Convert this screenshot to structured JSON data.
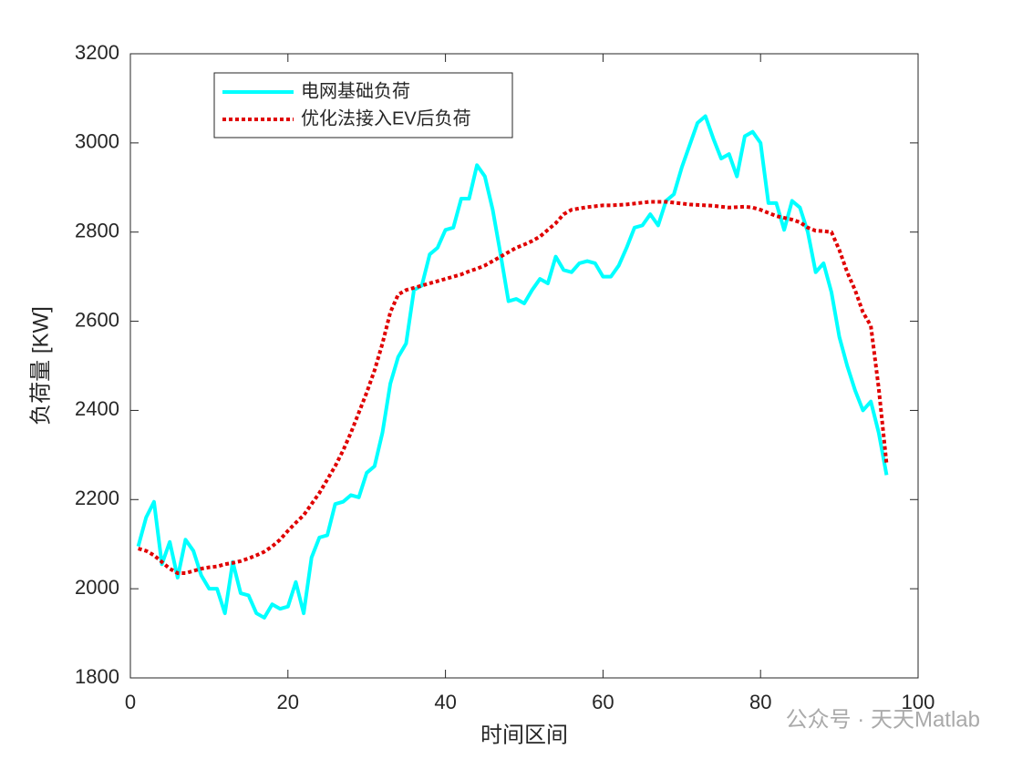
{
  "chart_data": {
    "type": "line",
    "xlabel": "时间区间",
    "ylabel": "负荷量 [KW]",
    "x": [
      1,
      2,
      3,
      4,
      5,
      6,
      7,
      8,
      9,
      10,
      11,
      12,
      13,
      14,
      15,
      16,
      17,
      18,
      19,
      20,
      21,
      22,
      23,
      24,
      25,
      26,
      27,
      28,
      29,
      30,
      31,
      32,
      33,
      34,
      35,
      36,
      37,
      38,
      39,
      40,
      41,
      42,
      43,
      44,
      45,
      46,
      47,
      48,
      49,
      50,
      51,
      52,
      53,
      54,
      55,
      56,
      57,
      58,
      59,
      60,
      61,
      62,
      63,
      64,
      65,
      66,
      67,
      68,
      69,
      70,
      71,
      72,
      73,
      74,
      75,
      76,
      77,
      78,
      79,
      80,
      81,
      82,
      83,
      84,
      85,
      86,
      87,
      88,
      89,
      90,
      91,
      92,
      93,
      94,
      95,
      96
    ],
    "series": [
      {
        "name": "电网基础负荷",
        "color": "#00ffff",
        "dash": "solid",
        "values": [
          2095,
          2160,
          2195,
          2055,
          2105,
          2025,
          2110,
          2085,
          2030,
          2000,
          2000,
          1945,
          2060,
          1990,
          1985,
          1945,
          1935,
          1965,
          1955,
          1960,
          2015,
          1945,
          2070,
          2115,
          2120,
          2190,
          2195,
          2210,
          2205,
          2260,
          2275,
          2350,
          2460,
          2520,
          2550,
          2670,
          2680,
          2750,
          2765,
          2805,
          2810,
          2875,
          2875,
          2950,
          2925,
          2850,
          2750,
          2645,
          2650,
          2640,
          2670,
          2695,
          2685,
          2745,
          2715,
          2710,
          2730,
          2735,
          2730,
          2700,
          2700,
          2725,
          2765,
          2810,
          2815,
          2840,
          2815,
          2870,
          2885,
          2945,
          2995,
          3045,
          3060,
          3010,
          2965,
          2975,
          2925,
          3015,
          3025,
          3000,
          2865,
          2865,
          2805,
          2870,
          2855,
          2800,
          2710,
          2730,
          2665,
          2565,
          2500,
          2445,
          2400,
          2420,
          2350,
          2255
        ]
      },
      {
        "name": "优化法接入EV后负荷",
        "color": "#e00000",
        "dash": "dotted",
        "values": [
          2090,
          2085,
          2075,
          2060,
          2045,
          2035,
          2035,
          2040,
          2045,
          2048,
          2050,
          2055,
          2058,
          2062,
          2068,
          2075,
          2083,
          2095,
          2110,
          2130,
          2148,
          2165,
          2190,
          2215,
          2245,
          2275,
          2310,
          2350,
          2395,
          2440,
          2490,
          2550,
          2620,
          2660,
          2670,
          2675,
          2680,
          2685,
          2690,
          2695,
          2700,
          2705,
          2712,
          2718,
          2725,
          2735,
          2745,
          2755,
          2765,
          2772,
          2780,
          2790,
          2805,
          2820,
          2840,
          2850,
          2853,
          2856,
          2858,
          2860,
          2860,
          2861,
          2862,
          2864,
          2866,
          2868,
          2868,
          2868,
          2866,
          2864,
          2862,
          2861,
          2860,
          2859,
          2857,
          2855,
          2856,
          2857,
          2855,
          2850,
          2843,
          2836,
          2832,
          2828,
          2822,
          2810,
          2803,
          2802,
          2800,
          2760,
          2710,
          2670,
          2620,
          2590,
          2450,
          2280
        ]
      }
    ],
    "xlim": [
      0,
      100
    ],
    "xticks": [
      0,
      20,
      40,
      60,
      80,
      100
    ],
    "ylim": [
      1800,
      3200
    ],
    "yticks": [
      1800,
      2000,
      2200,
      2400,
      2600,
      2800,
      3000,
      3200
    ],
    "legend": "upper left",
    "grid": false,
    "watermark": "公众号 · 天天Matlab"
  }
}
